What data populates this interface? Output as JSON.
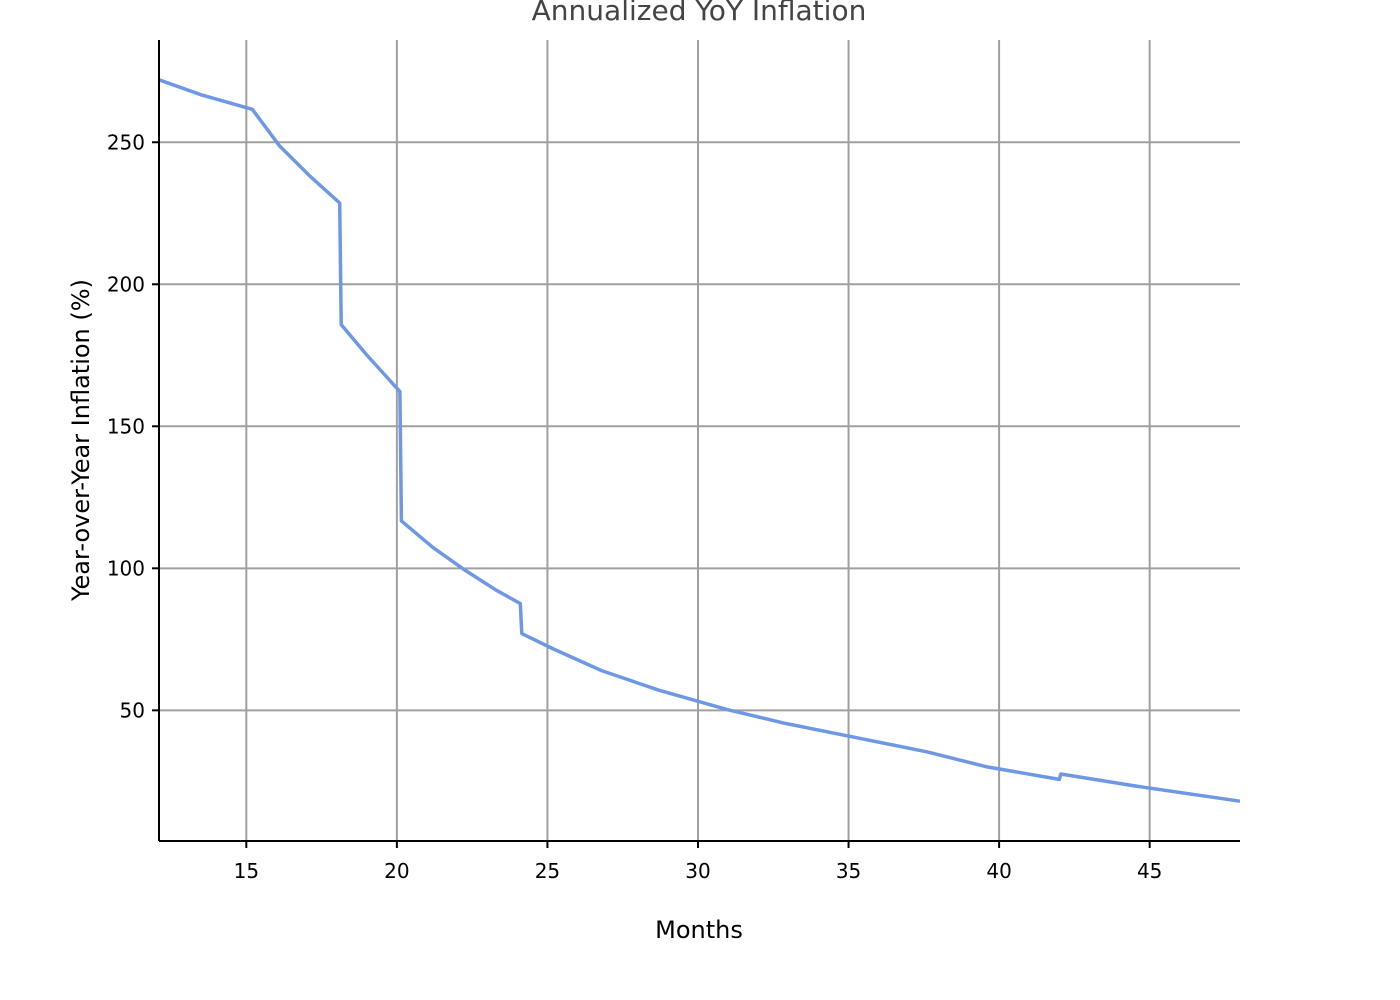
{
  "chart_data": {
    "type": "line",
    "title": "Annualized YoY Inflation",
    "xlabel": "Months",
    "ylabel": "Year-over-Year Inflation (%)",
    "xlim": [
      12.1,
      48
    ],
    "ylim": [
      4,
      286
    ],
    "x_ticks": [
      15,
      20,
      25,
      30,
      35,
      40,
      45
    ],
    "y_ticks": [
      50,
      100,
      150,
      200,
      250
    ],
    "grid": true,
    "series": [
      {
        "color": "#6e98e6",
        "x": [
          12.1,
          13.5,
          15.2,
          16.1,
          17.1,
          18.1,
          18.15,
          19.0,
          20.1,
          20.15,
          21.2,
          22.3,
          23.3,
          24.1,
          24.15,
          25.2,
          26.8,
          28.7,
          31.0,
          32.9,
          35.2,
          37.6,
          39.6,
          42.0,
          42.05,
          44.5,
          48.0
        ],
        "y": [
          272,
          266.7,
          261.6,
          248.8,
          238.2,
          228.6,
          185.8,
          175.1,
          162.2,
          116.7,
          107.3,
          99.1,
          92.3,
          87.6,
          77.0,
          71.6,
          64.0,
          57.1,
          50.2,
          45.4,
          40.5,
          35.4,
          30.1,
          25.7,
          27.6,
          23.4,
          18.0
        ]
      }
    ]
  }
}
